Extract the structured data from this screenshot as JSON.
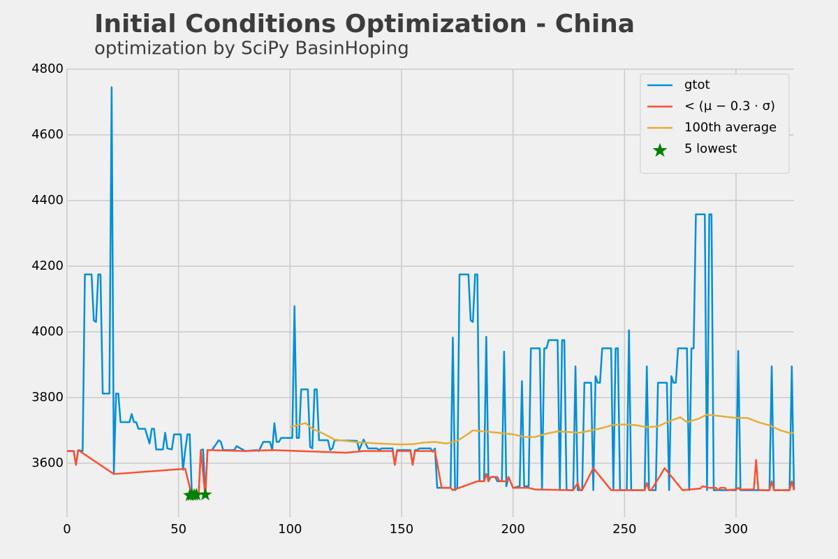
{
  "chart_data": {
    "type": "line",
    "title": "Initial Conditions Optimization - China",
    "subtitle": "optimization by SciPy BasinHoping",
    "xlim": [
      0,
      326
    ],
    "ylim": [
      3436,
      4800
    ],
    "xticks": [
      0,
      50,
      100,
      150,
      200,
      250,
      300
    ],
    "yticks": [
      3600,
      3800,
      4000,
      4200,
      4400,
      4600,
      4800
    ],
    "grid": true,
    "legend": "upper right",
    "series": [
      {
        "name": "gtot",
        "color": "#008fd5",
        "x": [
          0,
          3,
          4,
          5,
          7,
          8,
          11,
          12,
          13,
          14,
          15,
          16,
          19,
          20,
          21,
          22,
          23,
          24,
          28,
          29,
          30,
          31,
          32,
          35,
          37,
          38,
          39,
          40,
          43,
          44,
          45,
          47,
          48,
          51,
          52,
          53,
          54,
          55,
          56,
          59,
          60,
          61,
          62,
          63,
          65,
          68,
          69,
          70,
          75,
          76,
          80,
          85,
          86,
          88,
          91,
          92,
          93,
          94,
          95,
          96,
          101,
          102,
          103,
          104,
          105,
          108,
          109,
          110,
          111,
          112,
          113,
          117,
          118,
          119,
          120,
          130,
          131,
          133,
          135,
          139,
          140,
          141,
          146,
          147,
          148,
          154,
          155,
          156,
          157,
          158,
          163,
          164,
          165,
          166,
          172,
          173,
          174,
          175,
          176,
          180,
          181,
          182,
          183,
          184,
          185,
          187,
          188,
          189,
          190,
          192,
          193,
          195,
          196,
          197,
          198,
          200,
          203,
          204,
          205,
          207,
          208,
          212,
          213,
          214,
          215,
          216,
          220,
          221,
          222,
          223,
          224,
          227,
          228,
          229,
          231,
          232,
          235,
          236,
          237,
          238,
          239,
          240,
          244,
          245,
          246,
          247,
          248,
          251,
          252,
          253,
          259,
          260,
          261,
          264,
          265,
          269,
          270,
          271,
          272,
          273,
          274,
          278,
          279,
          280,
          281,
          282,
          286,
          287,
          288,
          289,
          290,
          300,
          301,
          302,
          315,
          316,
          317,
          324,
          325,
          326
        ],
        "values": [
          3637,
          3637,
          3595,
          3640,
          3637,
          4175,
          4175,
          4035,
          4030,
          4175,
          4175,
          3812,
          3812,
          4745,
          3570,
          3812,
          3812,
          3725,
          3725,
          3750,
          3725,
          3725,
          3705,
          3705,
          3660,
          3705,
          3705,
          3642,
          3642,
          3693,
          3645,
          3642,
          3688,
          3688,
          3580,
          3640,
          3688,
          3688,
          3500,
          3500,
          3640,
          3642,
          3500,
          3640,
          3640,
          3670,
          3665,
          3640,
          3640,
          3652,
          3637,
          3640,
          3637,
          3665,
          3665,
          3640,
          3722,
          3665,
          3665,
          3677,
          3677,
          4078,
          3677,
          3677,
          3825,
          3825,
          3650,
          3645,
          3825,
          3825,
          3670,
          3670,
          3640,
          3645,
          3670,
          3668,
          3640,
          3672,
          3645,
          3645,
          3640,
          3645,
          3645,
          3595,
          3640,
          3640,
          3595,
          3640,
          3640,
          3645,
          3645,
          3635,
          3645,
          3525,
          3525,
          3983,
          3518,
          3525,
          4175,
          4175,
          4035,
          4030,
          4175,
          4175,
          3545,
          3545,
          3985,
          3545,
          3558,
          3558,
          3545,
          3545,
          3940,
          3530,
          3558,
          3525,
          3530,
          3850,
          3530,
          3530,
          3950,
          3950,
          3520,
          3950,
          3950,
          3975,
          3975,
          3518,
          3975,
          3975,
          3518,
          3518,
          3895,
          3518,
          3518,
          3845,
          3845,
          3518,
          3865,
          3845,
          3845,
          3950,
          3950,
          3518,
          3950,
          3950,
          3518,
          3518,
          4005,
          3518,
          3518,
          3895,
          3518,
          3518,
          3845,
          3845,
          3518,
          3865,
          3845,
          3845,
          3950,
          3950,
          3518,
          3950,
          3950,
          4358,
          4358,
          3518,
          4358,
          4358,
          3518,
          3518,
          3942,
          3518,
          3518,
          3895,
          3518,
          3518,
          3895,
          3518
        ]
      },
      {
        "name": "< (μ − 0.3 · σ)",
        "color": "#fc4f30",
        "x": [
          0,
          3,
          4,
          5,
          21,
          53,
          56,
          59,
          60,
          61,
          62,
          63,
          80,
          92,
          125,
          133,
          146,
          147,
          148,
          154,
          155,
          156,
          165,
          168,
          172,
          173,
          184,
          187,
          188,
          189,
          190,
          193,
          194,
          197,
          198,
          200,
          207,
          210,
          227,
          229,
          230,
          231,
          236,
          244,
          259,
          260,
          261,
          262,
          268,
          276,
          284,
          285,
          288,
          291,
          292,
          293,
          295,
          296,
          300,
          301,
          302,
          303,
          308,
          309,
          310,
          311,
          312,
          315,
          316,
          317,
          324,
          325,
          326
        ],
        "values": [
          3637,
          3637,
          3595,
          3640,
          3567,
          3583,
          3500,
          3500,
          3640,
          3570,
          3500,
          3640,
          3637,
          3640,
          3632,
          3637,
          3637,
          3595,
          3637,
          3637,
          3595,
          3637,
          3637,
          3525,
          3525,
          3518,
          3545,
          3545,
          3568,
          3545,
          3558,
          3558,
          3545,
          3545,
          3558,
          3525,
          3525,
          3520,
          3518,
          3540,
          3518,
          3518,
          3585,
          3518,
          3518,
          3540,
          3518,
          3518,
          3585,
          3518,
          3523,
          3530,
          3525,
          3525,
          3518,
          3525,
          3525,
          3518,
          3520,
          3525,
          3518,
          3520,
          3520,
          3610,
          3520,
          3518,
          3518,
          3518,
          3545,
          3518,
          3518,
          3545,
          3518
        ]
      },
      {
        "name": "100th average",
        "color": "#e5ae38",
        "x": [
          100,
          104,
          107,
          110,
          115,
          120,
          125,
          130,
          140,
          150,
          155,
          160,
          165,
          170,
          175,
          180,
          182,
          190,
          200,
          205,
          210,
          215,
          220,
          230,
          240,
          245,
          250,
          255,
          260,
          265,
          270,
          275,
          278,
          283,
          287,
          295,
          300,
          305,
          310,
          315,
          320,
          324,
          326
        ],
        "values": [
          3710,
          3717,
          3722,
          3705,
          3690,
          3672,
          3668,
          3664,
          3660,
          3657,
          3658,
          3663,
          3665,
          3660,
          3668,
          3690,
          3700,
          3695,
          3688,
          3680,
          3680,
          3690,
          3697,
          3693,
          3707,
          3717,
          3718,
          3716,
          3710,
          3712,
          3728,
          3740,
          3725,
          3735,
          3748,
          3742,
          3738,
          3738,
          3725,
          3715,
          3700,
          3692,
          3693
        ]
      },
      {
        "name": "5 lowest",
        "color": "#008000",
        "type": "scatter",
        "x": [
          55,
          56,
          57,
          58,
          62
        ],
        "values": [
          3502,
          3503,
          3503,
          3504,
          3504
        ]
      }
    ]
  }
}
